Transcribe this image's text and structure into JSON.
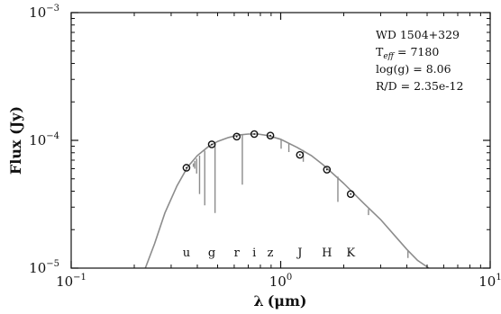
{
  "chart_data": {
    "type": "scatter",
    "xscale": "log",
    "yscale": "log",
    "xlim": [
      0.1,
      10
    ],
    "ylim": [
      1e-05,
      0.001
    ],
    "xlabel_symbol": "λ",
    "xlabel_unit": "(μm)",
    "ylabel": "Flux (Jy)",
    "x_ticks": [
      {
        "value": 0.1,
        "base": "10",
        "exp": "−1"
      },
      {
        "value": 1,
        "base": "10",
        "exp": "0"
      },
      {
        "value": 10,
        "base": "10",
        "exp": "1"
      }
    ],
    "y_ticks": [
      {
        "value": 1e-05,
        "base": "10",
        "exp": "−5"
      },
      {
        "value": 0.0001,
        "base": "10",
        "exp": "−4"
      },
      {
        "value": 0.001,
        "base": "10",
        "exp": "−3"
      }
    ],
    "annotations": {
      "name": "WD 1504+329",
      "teff_prefix": "T",
      "teff_sub": "eff",
      "teff_value": " = 7180",
      "logg": "log(g) = 8.06",
      "rd": "R/D = 2.35e-12"
    },
    "bands": [
      {
        "label": "u",
        "x": 0.355
      },
      {
        "label": "g",
        "x": 0.469
      },
      {
        "label": "r",
        "x": 0.617
      },
      {
        "label": "i",
        "x": 0.748
      },
      {
        "label": "z",
        "x": 0.893
      },
      {
        "label": "J",
        "x": 1.235
      },
      {
        "label": "H",
        "x": 1.662
      },
      {
        "label": "K",
        "x": 2.159
      }
    ],
    "photometry": [
      {
        "x": 0.355,
        "y": 6.1e-05
      },
      {
        "x": 0.469,
        "y": 9.3e-05
      },
      {
        "x": 0.617,
        "y": 0.000107
      },
      {
        "x": 0.748,
        "y": 0.000112
      },
      {
        "x": 0.893,
        "y": 0.000109
      },
      {
        "x": 1.235,
        "y": 7.7e-05
      },
      {
        "x": 1.662,
        "y": 5.9e-05
      },
      {
        "x": 2.159,
        "y": 3.8e-05
      }
    ],
    "model_spectrum": [
      {
        "x": 0.226,
        "y": 1e-05
      },
      {
        "x": 0.25,
        "y": 1.55e-05
      },
      {
        "x": 0.28,
        "y": 2.7e-05
      },
      {
        "x": 0.32,
        "y": 4.4e-05
      },
      {
        "x": 0.36,
        "y": 6.2e-05
      },
      {
        "x": 0.4,
        "y": 7.6e-05
      },
      {
        "x": 0.45,
        "y": 8.9e-05
      },
      {
        "x": 0.5,
        "y": 9.8e-05
      },
      {
        "x": 0.56,
        "y": 0.000105
      },
      {
        "x": 0.63,
        "y": 0.00011
      },
      {
        "x": 0.7,
        "y": 0.000112
      },
      {
        "x": 0.78,
        "y": 0.000112
      },
      {
        "x": 0.87,
        "y": 0.000109
      },
      {
        "x": 1.0,
        "y": 0.000102
      },
      {
        "x": 1.2,
        "y": 8.8e-05
      },
      {
        "x": 1.4,
        "y": 7.6e-05
      },
      {
        "x": 1.6,
        "y": 6.4e-05
      },
      {
        "x": 2.0,
        "y": 4.6e-05
      },
      {
        "x": 2.5,
        "y": 3.2e-05
      },
      {
        "x": 3.0,
        "y": 2.4e-05
      },
      {
        "x": 3.5,
        "y": 1.8e-05
      },
      {
        "x": 4.0,
        "y": 1.4e-05
      },
      {
        "x": 4.5,
        "y": 1.15e-05
      },
      {
        "x": 5.1,
        "y": 1e-05
      }
    ],
    "absorption_lines": [
      {
        "x": 0.383,
        "y_top": 6.6e-05,
        "y_bottom": 6.2e-05
      },
      {
        "x": 0.389,
        "y_top": 6.9e-05,
        "y_bottom": 6e-05
      },
      {
        "x": 0.397,
        "y_top": 7.2e-05,
        "y_bottom": 5.5e-05
      },
      {
        "x": 0.41,
        "y_top": 7.6e-05,
        "y_bottom": 3.8e-05
      },
      {
        "x": 0.434,
        "y_top": 8.3e-05,
        "y_bottom": 3.1e-05
      },
      {
        "x": 0.486,
        "y_top": 9.5e-05,
        "y_bottom": 2.7e-05
      },
      {
        "x": 0.656,
        "y_top": 0.000111,
        "y_bottom": 4.5e-05
      },
      {
        "x": 1.005,
        "y_top": 0.000101,
        "y_bottom": 8.6e-05
      },
      {
        "x": 1.094,
        "y_top": 9.5e-05,
        "y_bottom": 8.1e-05
      },
      {
        "x": 1.282,
        "y_top": 8.4e-05,
        "y_bottom": 6.8e-05
      },
      {
        "x": 1.875,
        "y_top": 5.2e-05,
        "y_bottom": 3.3e-05
      },
      {
        "x": 2.625,
        "y_top": 2.9e-05,
        "y_bottom": 2.6e-05
      },
      {
        "x": 4.05,
        "y_top": 1.38e-05,
        "y_bottom": 1.2e-05
      }
    ]
  }
}
